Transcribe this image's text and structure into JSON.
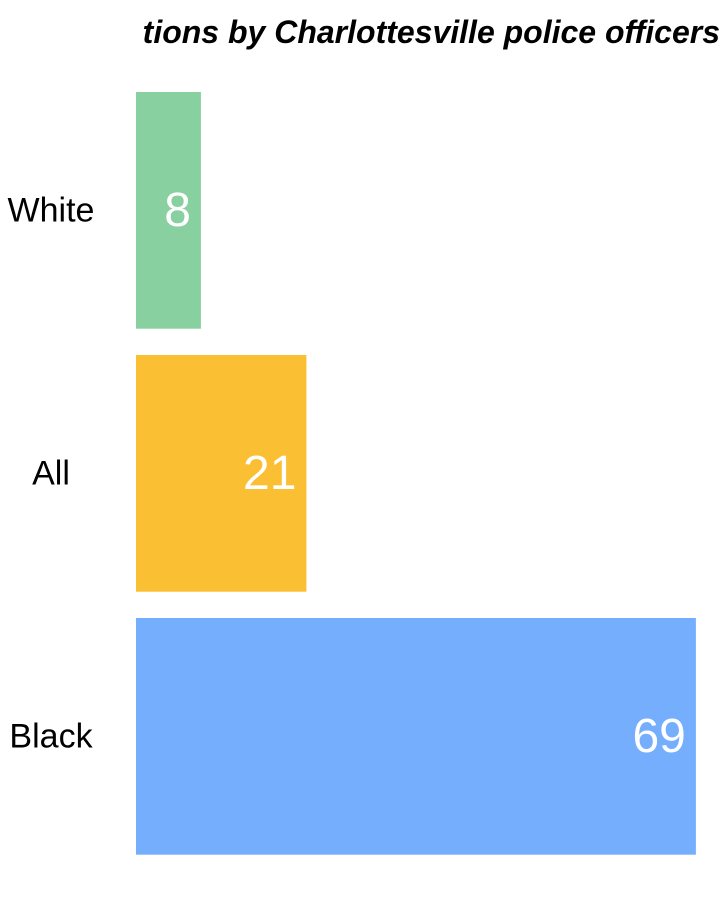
{
  "chart_data": {
    "type": "bar",
    "orientation": "horizontal",
    "title": "tions by Charlottesville police officers",
    "categories": [
      "White",
      "All",
      "Black"
    ],
    "values": [
      8,
      21,
      69
    ],
    "colors": [
      "#88d0a0",
      "#fbbf33",
      "#76aefe"
    ],
    "value_label_color": "#ffffff",
    "xlim": [
      0,
      70
    ],
    "grid": false,
    "legend": "none"
  }
}
